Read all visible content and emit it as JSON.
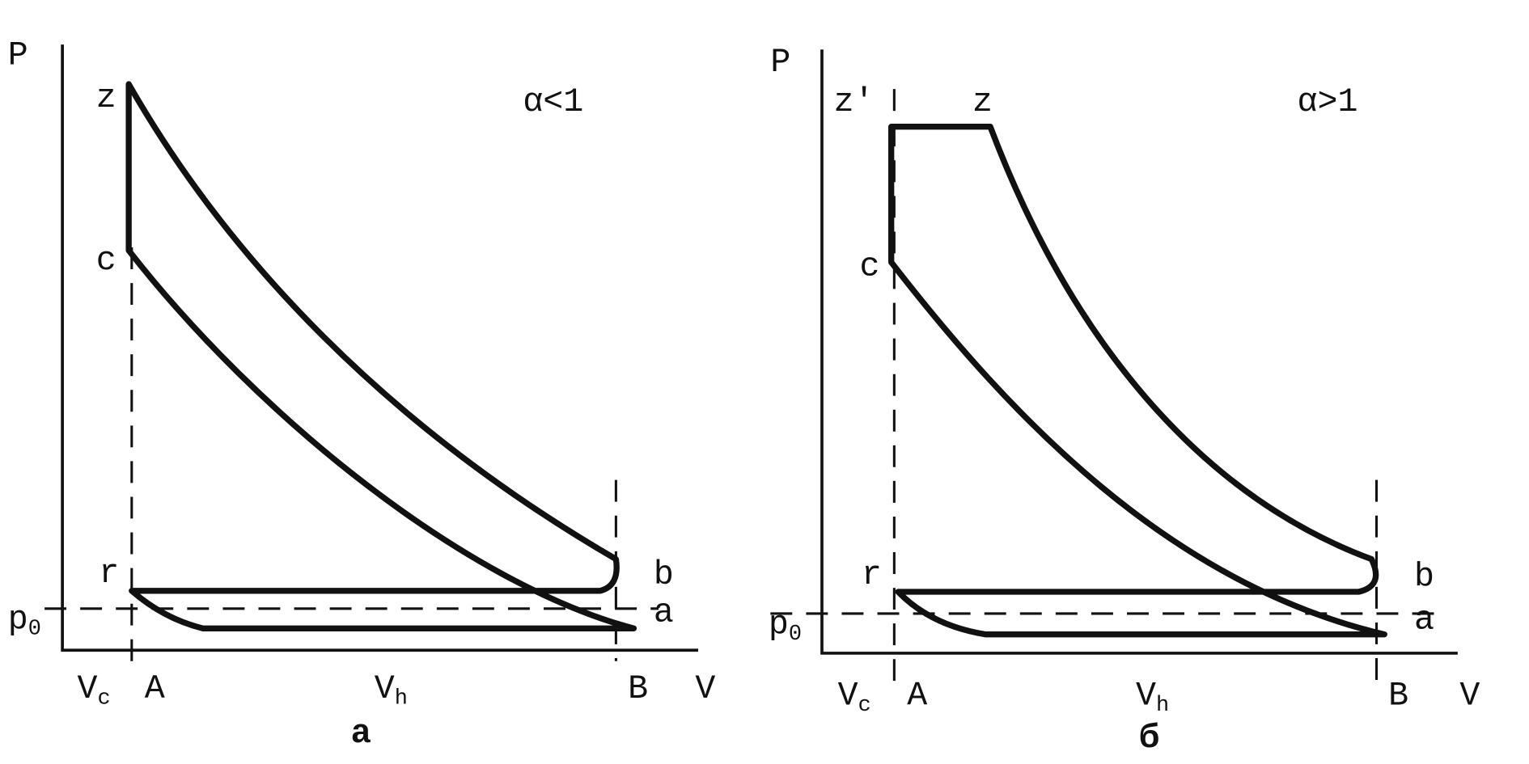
{
  "diagrams": [
    {
      "caption": "а",
      "condition": "α<1",
      "labels": {
        "p": "P",
        "z": "z",
        "c": "c",
        "r": "r",
        "b": "b",
        "a": "a",
        "A": "A",
        "B": "B",
        "v": "V",
        "p0": {
          "base": "p",
          "sub": "0"
        },
        "vc": {
          "base": "V",
          "sub": "c"
        },
        "vh": {
          "base": "V",
          "sub": "h"
        }
      }
    },
    {
      "caption": "б",
      "condition": "α>1",
      "labels": {
        "p": "P",
        "z1": "z'",
        "z": "z",
        "c": "c",
        "r": "r",
        "b": "b",
        "a": "a",
        "A": "A",
        "B": "B",
        "v": "V",
        "p0": {
          "base": "p",
          "sub": "0"
        },
        "vc": {
          "base": "V",
          "sub": "c"
        },
        "vh": {
          "base": "V",
          "sub": "h"
        }
      }
    }
  ]
}
